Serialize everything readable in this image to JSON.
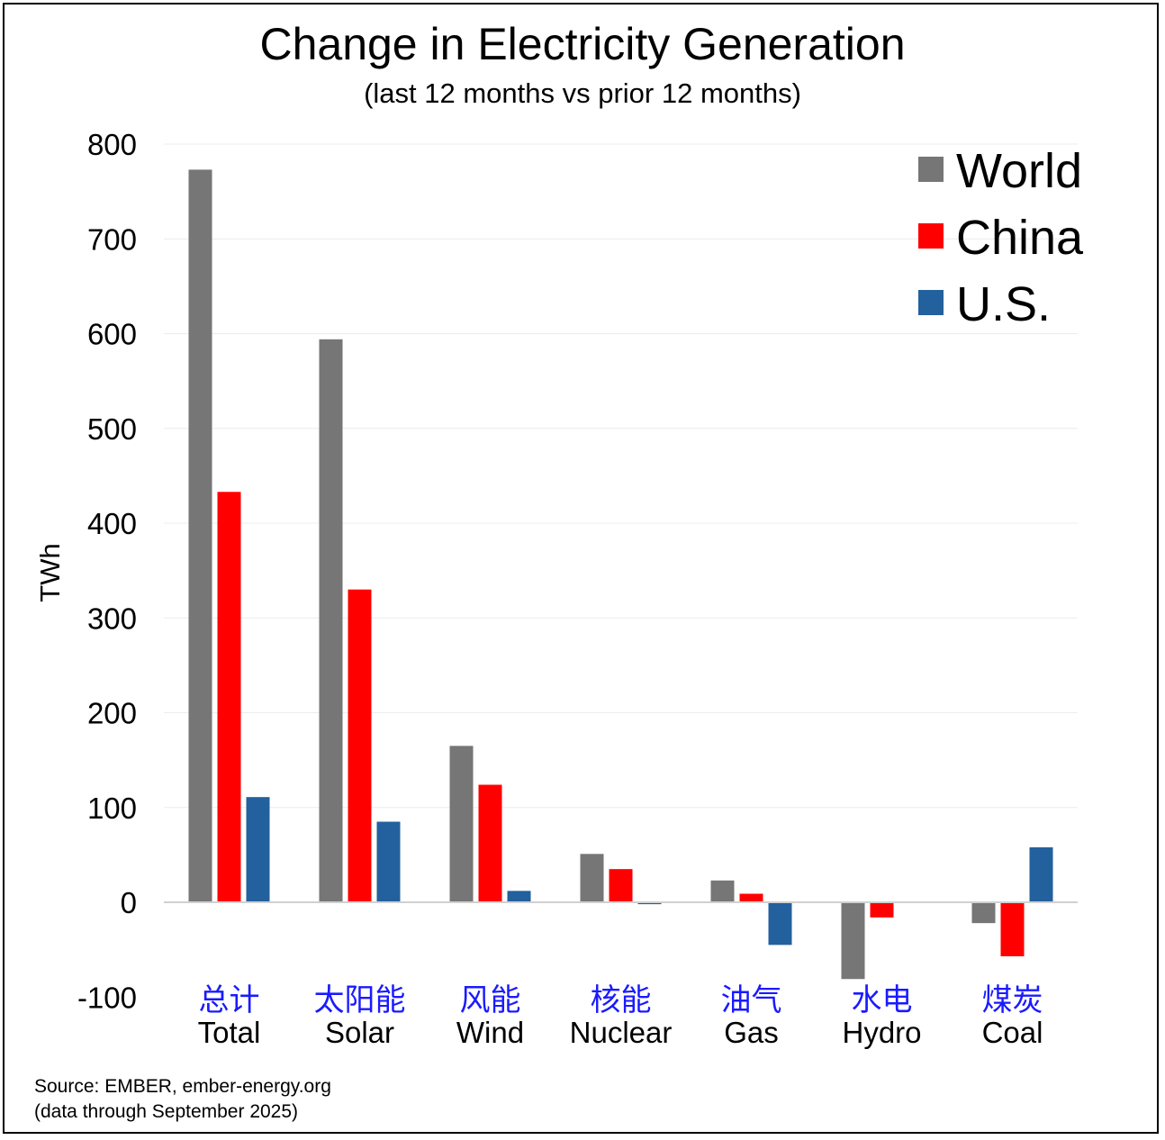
{
  "chart_data": {
    "type": "bar",
    "title": "Change in Electricity Generation",
    "subtitle": "(last 12 months vs prior 12 months)",
    "ylabel": "TWh",
    "xlabel": "",
    "ylim": [
      -100,
      800
    ],
    "yticks": [
      -100,
      0,
      100,
      200,
      300,
      400,
      500,
      600,
      700,
      800
    ],
    "grid": true,
    "legend_position": "top-right",
    "categories": [
      "Total",
      "Solar",
      "Wind",
      "Nuclear",
      "Gas",
      "Hydro",
      "Coal"
    ],
    "categories_zh": [
      "总计",
      "太阳能",
      "风能",
      "核能",
      "油气",
      "水电",
      "煤炭"
    ],
    "series": [
      {
        "name": "World",
        "color": "#767676",
        "values": [
          773,
          594,
          165,
          51,
          23,
          -81,
          -22
        ]
      },
      {
        "name": "China",
        "color": "#ff0000",
        "values": [
          433,
          330,
          124,
          35,
          9,
          -16,
          -57
        ]
      },
      {
        "name": "U.S.",
        "color": "#23609e",
        "values": [
          111,
          85,
          12,
          -2,
          -45,
          0,
          58
        ]
      }
    ],
    "category_zh_color": "#1a1aff"
  },
  "source": {
    "line1": "Source: EMBER, ember-energy.org",
    "line2": "(data through September 2025)"
  }
}
